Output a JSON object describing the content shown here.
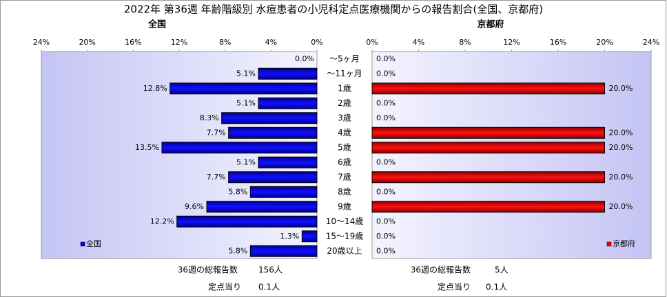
{
  "chart_data": {
    "type": "bar",
    "title": "2022年 第36週 年齢階級別 水痘患者の小児科定点医療機関からの報告割合(全国、京都府)",
    "categories": [
      "～5ヶ月",
      "～11ヶ月",
      "1歳",
      "2歳",
      "3歳",
      "4歳",
      "5歳",
      "6歳",
      "7歳",
      "8歳",
      "9歳",
      "10～14歳",
      "15～19歳",
      "20歳以上"
    ],
    "panels": [
      {
        "subtitle": "全国",
        "legend": "lower left",
        "xlim": [
          24,
          0
        ],
        "xticks": [
          {
            "value": 24,
            "label": "24%"
          },
          {
            "value": 20,
            "label": "20%"
          },
          {
            "value": 16,
            "label": "16%"
          },
          {
            "value": 12,
            "label": "12%"
          },
          {
            "value": 8,
            "label": "8%"
          },
          {
            "value": 4,
            "label": "4%"
          },
          {
            "value": 0,
            "label": "0%"
          }
        ],
        "series": [
          {
            "name": "全国",
            "color": "#0000ff",
            "values": [
              0.0,
              5.1,
              12.8,
              5.1,
              8.3,
              7.7,
              13.5,
              5.1,
              7.7,
              5.8,
              9.6,
              12.2,
              1.3,
              5.8
            ],
            "value_labels": [
              "0.0%",
              "5.1%",
              "12.8%",
              "5.1%",
              "8.3%",
              "7.7%",
              "13.5%",
              "5.1%",
              "7.7%",
              "5.8%",
              "9.6%",
              "12.2%",
              "1.3%",
              "5.8%"
            ]
          }
        ],
        "notes": [
          {
            "label": "36週の総報告数",
            "value": "156人"
          },
          {
            "label": "定点当り",
            "value": "0.1人"
          }
        ]
      },
      {
        "subtitle": "京都府",
        "legend": "lower right",
        "xlim": [
          0,
          24
        ],
        "xticks": [
          {
            "value": 0,
            "label": "0%"
          },
          {
            "value": 4,
            "label": "4%"
          },
          {
            "value": 8,
            "label": "8%"
          },
          {
            "value": 12,
            "label": "12%"
          },
          {
            "value": 16,
            "label": "16%"
          },
          {
            "value": 20,
            "label": "20%"
          },
          {
            "value": 24,
            "label": "24%"
          }
        ],
        "series": [
          {
            "name": "京都府",
            "color": "#ff0000",
            "values": [
              0.0,
              0.0,
              20.0,
              0.0,
              0.0,
              20.0,
              20.0,
              0.0,
              20.0,
              0.0,
              20.0,
              0.0,
              0.0,
              0.0
            ],
            "value_labels": [
              "0.0%",
              "0.0%",
              "20.0%",
              "0.0%",
              "0.0%",
              "20.0%",
              "20.0%",
              "0.0%",
              "20.0%",
              "0.0%",
              "20.0%",
              "0.0%",
              "0.0%",
              "0.0%"
            ]
          }
        ],
        "notes": [
          {
            "label": "36週の総報告数",
            "value": "5人"
          },
          {
            "label": "定点当り",
            "value": "0.1人"
          }
        ]
      }
    ]
  }
}
